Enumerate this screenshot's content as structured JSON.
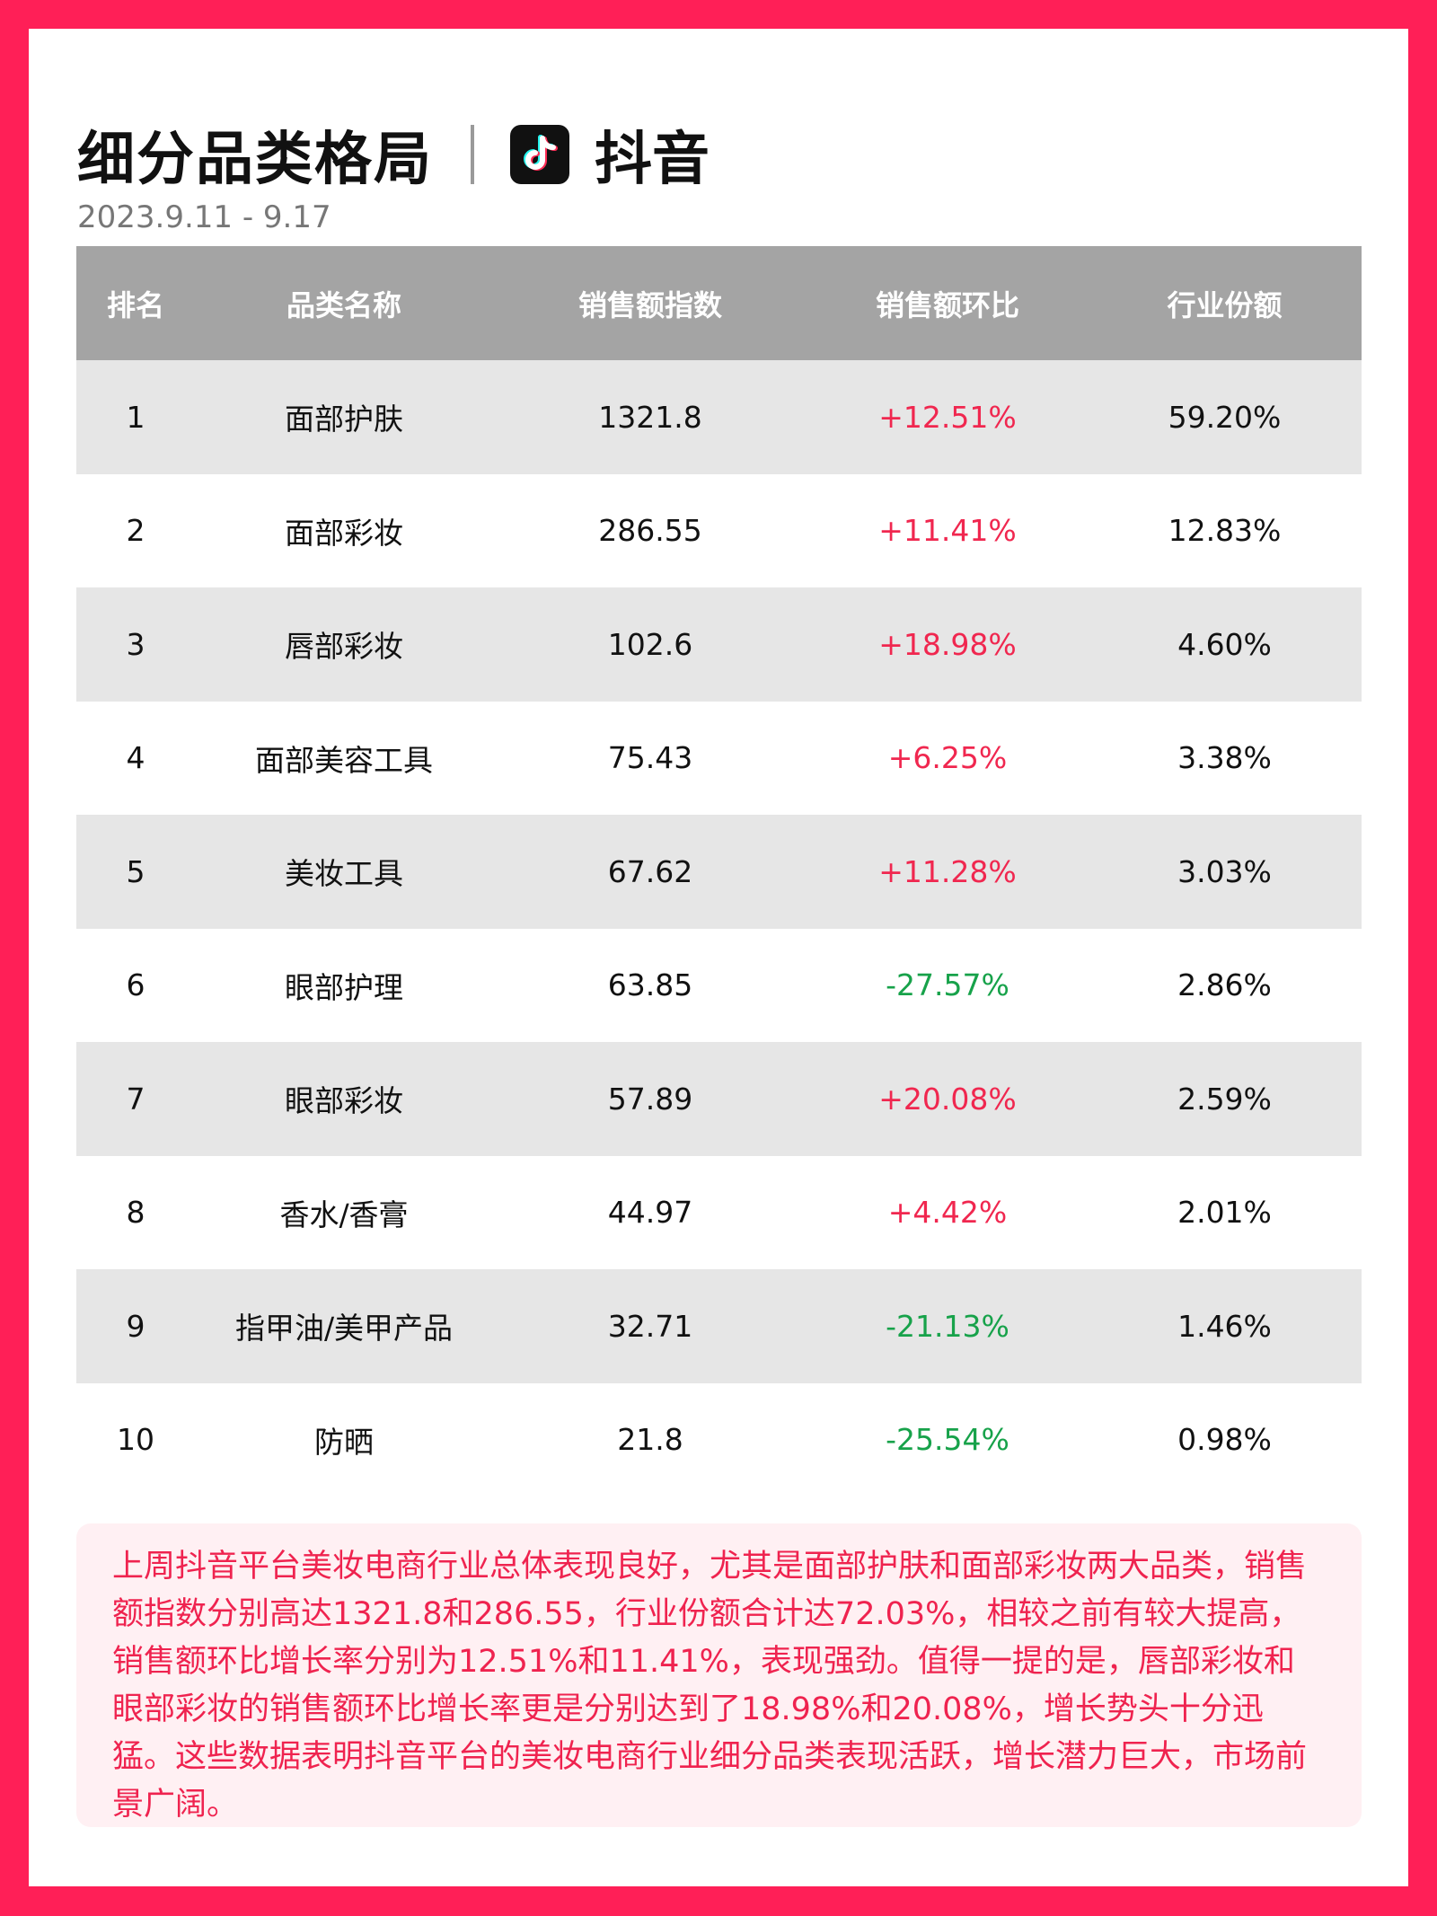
{
  "header": {
    "title": "细分品类格局",
    "brand": "抖音",
    "date": "2023.9.11 - 9.17"
  },
  "table": {
    "columns": [
      "排名",
      "品类名称",
      "销售额指数",
      "销售额环比",
      "行业份额"
    ],
    "rows": [
      {
        "rank": "1",
        "category": "面部护肤",
        "index": "1321.8",
        "mom": "+12.51%",
        "share": "59.20%"
      },
      {
        "rank": "2",
        "category": "面部彩妆",
        "index": "286.55",
        "mom": "+11.41%",
        "share": "12.83%"
      },
      {
        "rank": "3",
        "category": "唇部彩妆",
        "index": "102.6",
        "mom": "+18.98%",
        "share": "4.60%"
      },
      {
        "rank": "4",
        "category": "面部美容工具",
        "index": "75.43",
        "mom": "+6.25%",
        "share": "3.38%"
      },
      {
        "rank": "5",
        "category": "美妆工具",
        "index": "67.62",
        "mom": "+11.28%",
        "share": "3.03%"
      },
      {
        "rank": "6",
        "category": "眼部护理",
        "index": "63.85",
        "mom": "-27.57%",
        "share": "2.86%"
      },
      {
        "rank": "7",
        "category": "眼部彩妆",
        "index": "57.89",
        "mom": "+20.08%",
        "share": "2.59%"
      },
      {
        "rank": "8",
        "category": "香水/香膏",
        "index": "44.97",
        "mom": "+4.42%",
        "share": "2.01%"
      },
      {
        "rank": "9",
        "category": "指甲油/美甲产品",
        "index": "32.71",
        "mom": "-21.13%",
        "share": "1.46%"
      },
      {
        "rank": "10",
        "category": "防晒",
        "index": "21.8",
        "mom": "-25.54%",
        "share": "0.98%"
      }
    ]
  },
  "summary": "上周抖音平台美妆电商行业总体表现良好，尤其是面部护肤和面部彩妆两大品类，销售额指数分别高达1321.8和286.55，行业份额合计达72.03%，相较之前有较大提高，销售额环比增长率分别为12.51%和11.41%，表现强劲。值得一提的是，唇部彩妆和眼部彩妆的销售额环比增长率更是分别达到了18.98%和20.08%，增长势头十分迅猛。这些数据表明抖音平台的美妆电商行业细分品类表现活跃，增长潜力巨大，市场前景广阔。",
  "colors": {
    "frame": "#ff1f57",
    "up": "#f0274f",
    "down": "#17a24a",
    "header_bg": "#a4a4a4",
    "stripe": "#e6e6e6"
  },
  "icons": {
    "logo": "tiktok-logo"
  }
}
